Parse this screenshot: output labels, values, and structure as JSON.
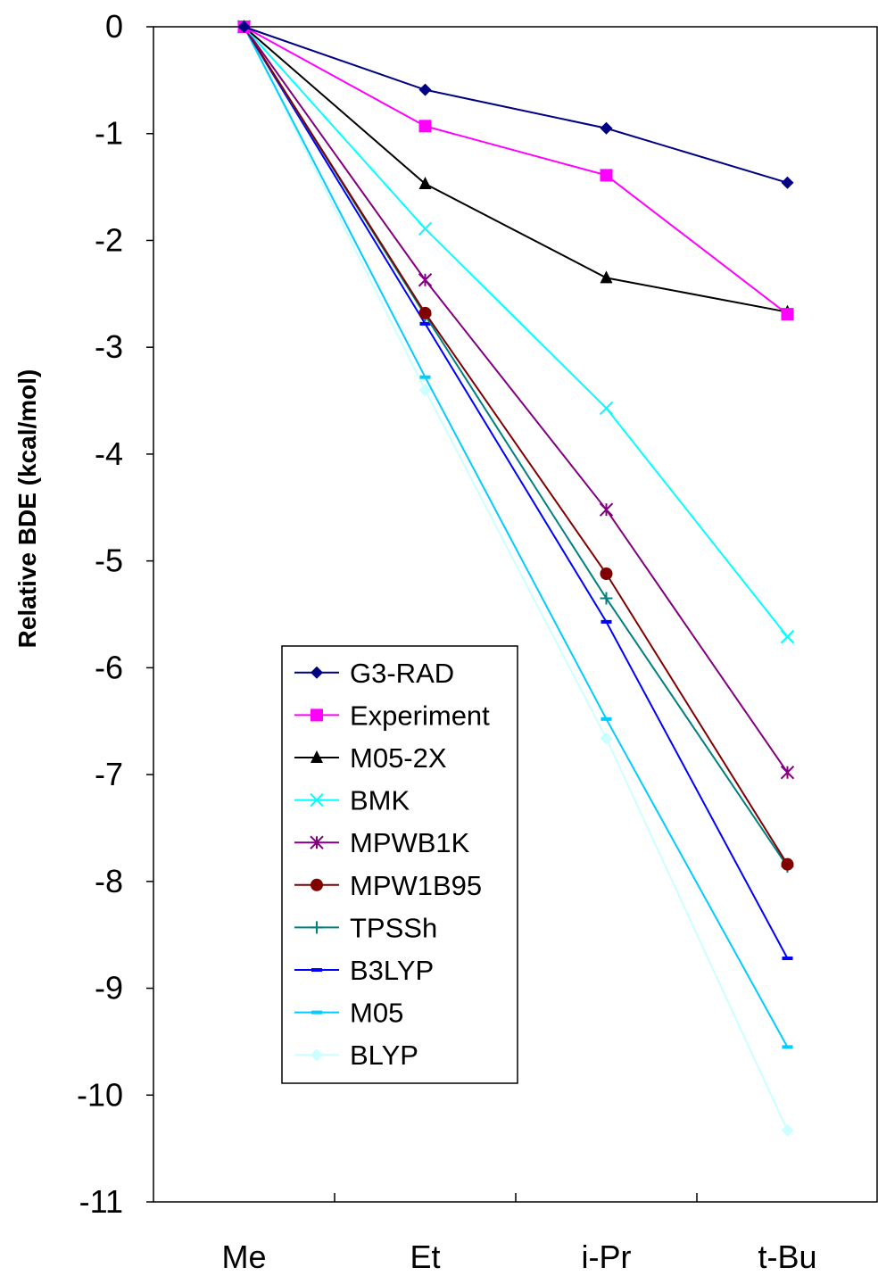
{
  "chart_data": {
    "type": "line",
    "title": "",
    "xlabel": "",
    "ylabel": "Relative BDE (kcal/mol)",
    "categories": [
      "Me",
      "Et",
      "i-Pr",
      "t-Bu"
    ],
    "ylim": [
      -11,
      0
    ],
    "yticks": [
      "0",
      "-1",
      "-2",
      "-3",
      "-4",
      "-5",
      "-6",
      "-7",
      "-8",
      "-9",
      "-10",
      "-11"
    ],
    "grid": false,
    "legend_position": "lower-left",
    "series": [
      {
        "name": "G3-RAD",
        "values": [
          0,
          -0.59,
          -0.95,
          -1.46
        ],
        "color": "#000080",
        "marker": "diamond"
      },
      {
        "name": "Experiment",
        "values": [
          0,
          -0.93,
          -1.39,
          -2.69
        ],
        "color": "#FF00FF",
        "marker": "square"
      },
      {
        "name": "M05-2X",
        "values": [
          0,
          -1.47,
          -2.35,
          -2.67
        ],
        "color": "#000000",
        "marker": "triangle"
      },
      {
        "name": "BMK",
        "values": [
          0,
          -1.89,
          -3.57,
          -5.71
        ],
        "color": "#00FFFF",
        "marker": "x"
      },
      {
        "name": "MPWB1K",
        "values": [
          0,
          -2.37,
          -4.52,
          -6.98
        ],
        "color": "#800080",
        "marker": "star"
      },
      {
        "name": "MPW1B95",
        "values": [
          0,
          -2.68,
          -5.12,
          -7.84
        ],
        "color": "#800000",
        "marker": "circle"
      },
      {
        "name": "TPSSh",
        "values": [
          0,
          -2.7,
          -5.35,
          -7.86
        ],
        "color": "#008080",
        "marker": "plus"
      },
      {
        "name": "B3LYP",
        "values": [
          0,
          -2.78,
          -5.57,
          -8.72
        ],
        "color": "#0000FF",
        "marker": "dash"
      },
      {
        "name": "M05",
        "values": [
          0,
          -3.28,
          -6.48,
          -9.55
        ],
        "color": "#00CCFF",
        "marker": "dash"
      },
      {
        "name": "BLYP",
        "values": [
          0,
          -3.4,
          -6.66,
          -10.33
        ],
        "color": "#CCFFFF",
        "marker": "diamond"
      }
    ]
  }
}
